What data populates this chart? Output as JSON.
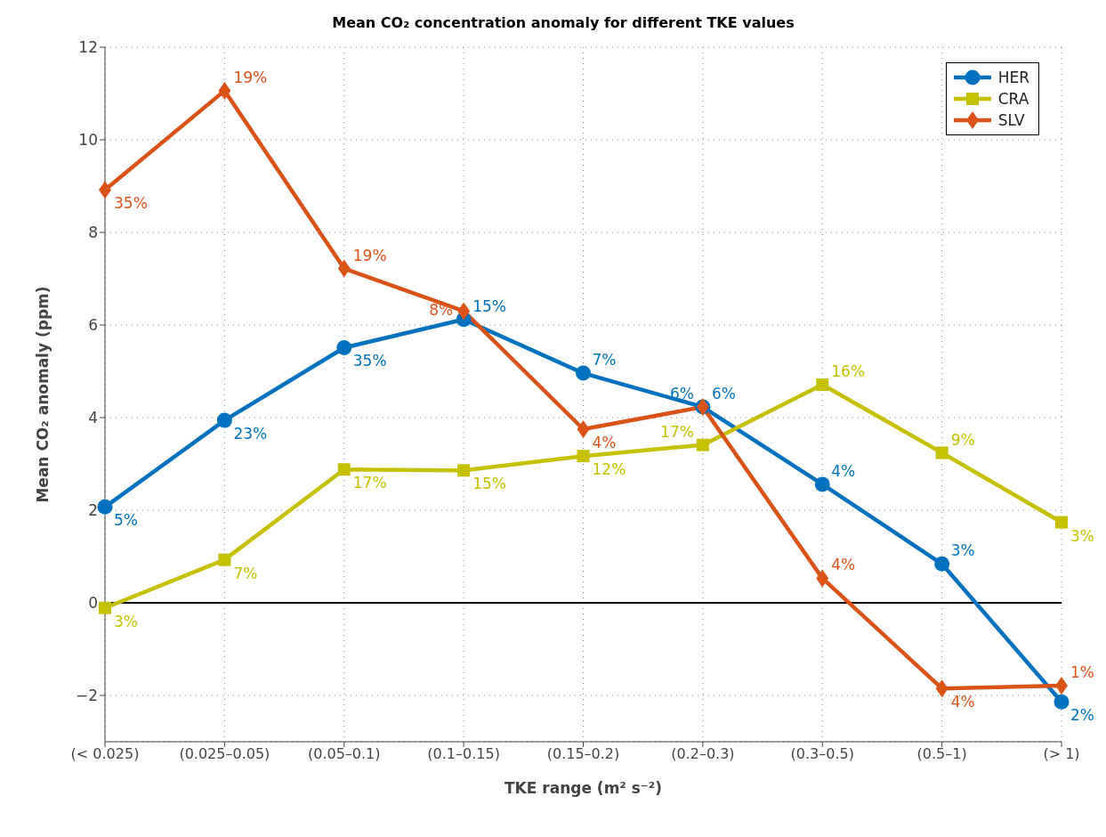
{
  "chart_data": {
    "type": "line",
    "title": "Mean CO₂ concentration anomaly for different TKE values",
    "xlabel": "TKE range (m² s⁻²)",
    "ylabel": "Mean CO₂ anomaly (ppm)",
    "categories": [
      "(< 0.025)",
      "(0.025–0.05)",
      "(0.05–0.1)",
      "(0.1–0.15)",
      "(0.15–0.2)",
      "(0.2–0.3)",
      "(0.3–0.5)",
      "(0.5–1)",
      "(> 1)"
    ],
    "series": [
      {
        "name": "HER",
        "color": "#0072bd",
        "marker": "circle",
        "values": [
          2.07,
          3.94,
          5.51,
          6.12,
          4.96,
          4.23,
          2.56,
          0.84,
          -2.14
        ]
      },
      {
        "name": "CRA",
        "color": "#c5c000",
        "marker": "square",
        "values": [
          -0.11,
          0.93,
          2.88,
          2.86,
          3.17,
          3.41,
          4.71,
          3.24,
          1.74
        ]
      },
      {
        "name": "SLV",
        "color": "#d95319",
        "marker": "diamond",
        "values": [
          8.92,
          11.06,
          7.22,
          6.3,
          3.75,
          4.23,
          0.53,
          -1.85,
          -1.79
        ]
      }
    ],
    "annotations": [
      {
        "text": "5%",
        "x": "(< 0.025)",
        "y": 2.07
      },
      {
        "text": "23%",
        "x": "(0.025–0.05)",
        "y": 3.94
      },
      {
        "text": "35%",
        "x": "(0.05–0.1)",
        "y": 5.51
      },
      {
        "text": "15%",
        "x": "(0.1–0.15)",
        "y": 6.12
      },
      {
        "text": "7%",
        "x": "(0.15–0.2)",
        "y": 4.96
      },
      {
        "text": "6%",
        "x": "(0.2–0.3)",
        "y": 4.23
      },
      {
        "text": "4%",
        "x": "(0.3–0.5)",
        "y": 2.56
      },
      {
        "text": "3%",
        "x": "(0.5–1)",
        "y": 0.84
      },
      {
        "text": "2%",
        "x": "(> 1)",
        "y": -2.14
      },
      {
        "text": "3%",
        "x": "(< 0.025)",
        "y": -0.11
      },
      {
        "text": "7%",
        "x": "(0.025–0.05)",
        "y": 0.93
      },
      {
        "text": "17%",
        "x": "(0.05–0.1)",
        "y": 2.88
      },
      {
        "text": "15%",
        "x": "(0.1–0.15)",
        "y": 2.86
      },
      {
        "text": "12%",
        "x": "(0.15–0.2)",
        "y": 3.17
      },
      {
        "text": "17%",
        "x": "(0.2–0.3)",
        "y": 3.41
      },
      {
        "text": "16%",
        "x": "(0.3–0.5)",
        "y": 4.71
      },
      {
        "text": "9%",
        "x": "(0.5–1)",
        "y": 3.24
      },
      {
        "text": "3%",
        "x": "(> 1)",
        "y": 1.74
      },
      {
        "text": "35%",
        "x": "(< 0.025)",
        "y": 8.92
      },
      {
        "text": "19%",
        "x": "(0.025–0.05)",
        "y": 11.06
      },
      {
        "text": "19%",
        "x": "(0.05–0.1)",
        "y": 7.22
      },
      {
        "text": "8%",
        "x": "(0.1–0.15)",
        "y": 6.3
      },
      {
        "text": "4%",
        "x": "(0.15–0.2)",
        "y": 3.75
      },
      {
        "text": "6%",
        "x": "(0.2–0.3)",
        "y": 4.23
      },
      {
        "text": "4%",
        "x": "(0.3–0.5)",
        "y": 0.53
      },
      {
        "text": "4%",
        "x": "(0.5–1)",
        "y": -1.85
      },
      {
        "text": "1%",
        "x": "(> 1)",
        "y": -1.79
      }
    ],
    "ylim": [
      -3,
      12
    ],
    "yticks": [
      -2,
      0,
      2,
      4,
      6,
      8,
      10,
      12
    ],
    "grid": true,
    "legend": "top right",
    "line_style": "solid",
    "ref_lines": [
      {
        "axis": "y",
        "value": 0,
        "color": "#000000",
        "line_style": "solid"
      }
    ]
  }
}
